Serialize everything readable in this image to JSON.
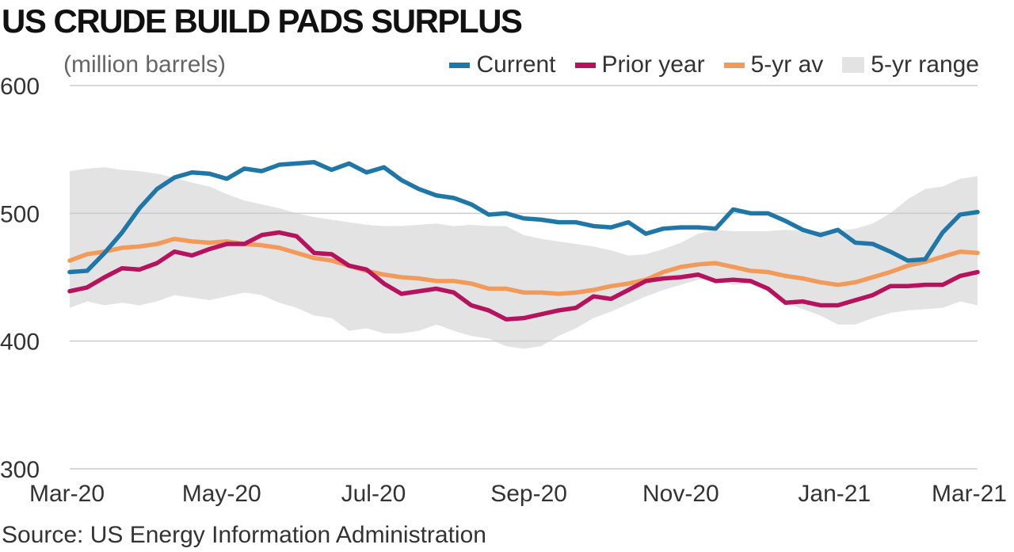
{
  "title": "US CRUDE BUILD PADS SURPLUS",
  "unit": "(million barrels)",
  "source": "Source: US Energy Information Administration",
  "colors": {
    "current": "#1f77a8",
    "prior": "#b5135e",
    "avg": "#f19a5a",
    "range": "#e3e3e3",
    "grid": "#cccccc"
  },
  "legend": [
    {
      "key": "current",
      "label": "Current",
      "type": "line"
    },
    {
      "key": "prior",
      "label": "Prior year",
      "type": "line"
    },
    {
      "key": "avg",
      "label": "5-yr av",
      "type": "line"
    },
    {
      "key": "range",
      "label": "5-yr range",
      "type": "band"
    }
  ],
  "chart_data": {
    "type": "line",
    "title": "US CRUDE BUILD PADS SURPLUS",
    "ylabel": "(million barrels)",
    "ylim": [
      300,
      600
    ],
    "yticks": [
      300,
      400,
      500,
      600
    ],
    "xlim": [
      0,
      52
    ],
    "xtick_labels": [
      {
        "pos": 0,
        "label": "Mar-20"
      },
      {
        "pos": 8.7,
        "label": "May-20"
      },
      {
        "pos": 17.4,
        "label": "Jul-20"
      },
      {
        "pos": 26.3,
        "label": "Sep-20"
      },
      {
        "pos": 35,
        "label": "Nov-20"
      },
      {
        "pos": 43.8,
        "label": "Jan-21"
      },
      {
        "pos": 52,
        "label": "Mar-21"
      }
    ],
    "grid": "horizontal",
    "legend_position": "top-right",
    "series": [
      {
        "name": "Current",
        "key": "current",
        "values": [
          454,
          455,
          469,
          485,
          504,
          519,
          528,
          532,
          531,
          527,
          535,
          533,
          538,
          539,
          540,
          534,
          539,
          532,
          536,
          526,
          519,
          514,
          512,
          507,
          499,
          500,
          496,
          495,
          493,
          493,
          490,
          489,
          493,
          484,
          488,
          489,
          489,
          488,
          503,
          500,
          500,
          494,
          487,
          483,
          487,
          477,
          476,
          470,
          463,
          464,
          485,
          499,
          501
        ]
      },
      {
        "name": "Prior year",
        "key": "prior",
        "values": [
          439,
          442,
          450,
          457,
          456,
          461,
          470,
          467,
          472,
          476,
          476,
          483,
          485,
          482,
          469,
          468,
          459,
          456,
          445,
          437,
          439,
          441,
          438,
          428,
          424,
          417,
          418,
          421,
          424,
          426,
          435,
          433,
          440,
          447,
          449,
          450,
          452,
          447,
          448,
          447,
          441,
          430,
          431,
          428,
          428,
          432,
          436,
          443,
          443,
          444,
          444,
          451,
          454
        ]
      },
      {
        "name": "5-yr av",
        "key": "avg",
        "values": [
          463,
          468,
          470,
          473,
          474,
          476,
          480,
          478,
          477,
          478,
          476,
          475,
          473,
          469,
          465,
          463,
          459,
          455,
          452,
          450,
          449,
          447,
          447,
          445,
          441,
          441,
          438,
          438,
          437,
          438,
          440,
          443,
          445,
          448,
          454,
          458,
          460,
          461,
          458,
          455,
          454,
          451,
          449,
          446,
          444,
          446,
          450,
          454,
          459,
          462,
          466,
          470,
          469
        ]
      },
      {
        "name": "5-yr range",
        "key": "range",
        "band": true,
        "lower": [
          426,
          431,
          428,
          430,
          428,
          431,
          436,
          434,
          432,
          435,
          438,
          436,
          430,
          426,
          420,
          418,
          408,
          410,
          406,
          406,
          408,
          413,
          408,
          404,
          402,
          396,
          394,
          396,
          404,
          410,
          418,
          423,
          429,
          435,
          440,
          444,
          448,
          449,
          444,
          445,
          443,
          430,
          425,
          420,
          413,
          413,
          418,
          422,
          424,
          425,
          426,
          431,
          428
        ],
        "upper": [
          533,
          535,
          536,
          534,
          533,
          531,
          528,
          524,
          521,
          515,
          510,
          507,
          504,
          500,
          497,
          495,
          493,
          491,
          490,
          490,
          491,
          492,
          490,
          491,
          490,
          490,
          483,
          480,
          478,
          476,
          474,
          471,
          467,
          468,
          472,
          477,
          484,
          487,
          486,
          486,
          486,
          487,
          486,
          486,
          486,
          488,
          492,
          500,
          511,
          519,
          521,
          527,
          529
        ]
      }
    ]
  }
}
